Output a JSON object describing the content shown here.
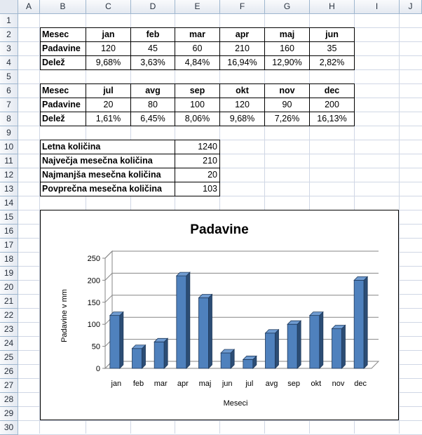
{
  "columns": [
    "A",
    "B",
    "C",
    "D",
    "E",
    "F",
    "G",
    "H",
    "I",
    "J"
  ],
  "rows": [
    "1",
    "2",
    "3",
    "4",
    "5",
    "6",
    "7",
    "8",
    "9",
    "10",
    "11",
    "12",
    "13",
    "14",
    "15",
    "16",
    "17",
    "18",
    "19",
    "20",
    "21",
    "22",
    "23",
    "24",
    "25",
    "26",
    "27",
    "28",
    "29",
    "30"
  ],
  "table1": {
    "header_label": "Mesec",
    "months": [
      "jan",
      "feb",
      "mar",
      "apr",
      "maj",
      "jun"
    ],
    "row2_label": "Padavine",
    "values": [
      "120",
      "45",
      "60",
      "210",
      "160",
      "35"
    ],
    "row3_label": "Delež",
    "shares": [
      "9,68%",
      "3,63%",
      "4,84%",
      "16,94%",
      "12,90%",
      "2,82%"
    ]
  },
  "table2": {
    "header_label": "Mesec",
    "months": [
      "jul",
      "avg",
      "sep",
      "okt",
      "nov",
      "dec"
    ],
    "row2_label": "Padavine",
    "values": [
      "20",
      "80",
      "100",
      "120",
      "90",
      "200"
    ],
    "row3_label": "Delež",
    "shares": [
      "1,61%",
      "6,45%",
      "8,06%",
      "9,68%",
      "7,26%",
      "16,13%"
    ]
  },
  "summary": [
    {
      "label": "Letna količina",
      "value": "1240"
    },
    {
      "label": "Največja mesečna količina",
      "value": "210"
    },
    {
      "label": "Najmanjša mesečna količina",
      "value": "20"
    },
    {
      "label": "Povprečna mesečna količina",
      "value": "103"
    }
  ],
  "chart_data": {
    "type": "bar",
    "title": "Padavine",
    "xlabel": "Meseci",
    "ylabel": "Padavine v mm",
    "categories": [
      "jan",
      "feb",
      "mar",
      "apr",
      "maj",
      "jun",
      "jul",
      "avg",
      "sep",
      "okt",
      "nov",
      "dec"
    ],
    "values": [
      120,
      45,
      60,
      210,
      160,
      35,
      20,
      80,
      100,
      120,
      90,
      200
    ],
    "ylim": [
      0,
      250
    ],
    "yticks": [
      0,
      50,
      100,
      150,
      200,
      250
    ],
    "grid": true,
    "legend": "none",
    "bar_color": "#4f81bd",
    "bar_side_color": "#2c4d75"
  }
}
